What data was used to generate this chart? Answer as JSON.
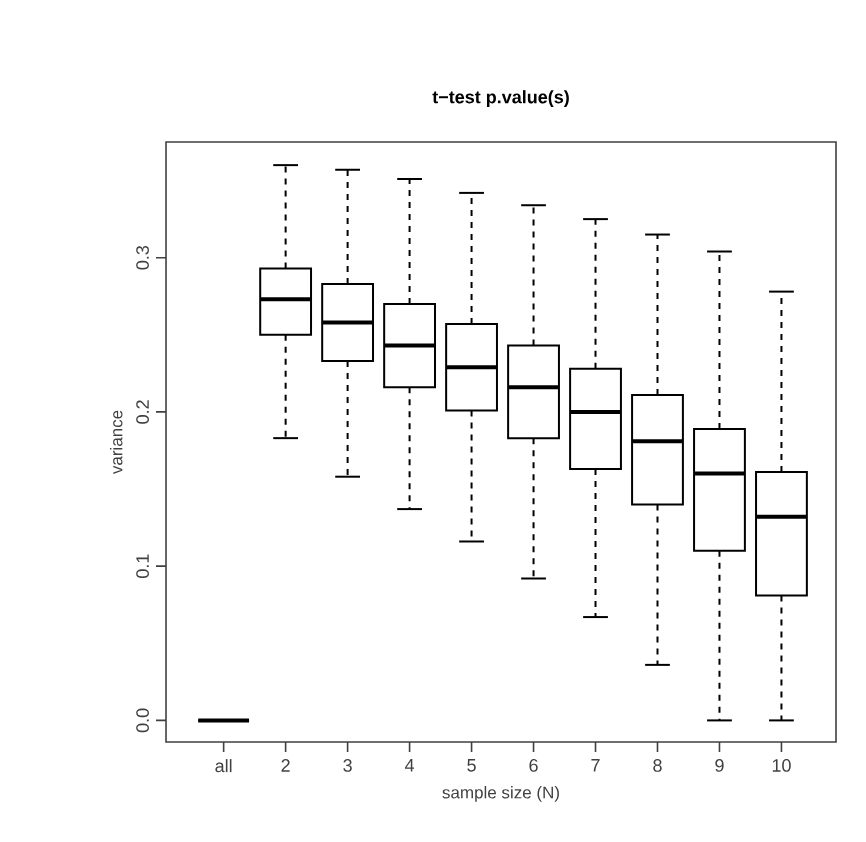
{
  "chart_data": {
    "type": "box",
    "title": "t−test p.value(s)",
    "xlabel": "sample size (N)",
    "ylabel": "variance",
    "categories": [
      "all",
      "2",
      "3",
      "4",
      "5",
      "6",
      "7",
      "8",
      "9",
      "10"
    ],
    "boxes": [
      {
        "low": 0,
        "q1": 0,
        "median": 0,
        "q3": 0,
        "high": 0
      },
      {
        "low": 0.183,
        "q1": 0.25,
        "median": 0.273,
        "q3": 0.293,
        "high": 0.36
      },
      {
        "low": 0.158,
        "q1": 0.233,
        "median": 0.258,
        "q3": 0.283,
        "high": 0.357
      },
      {
        "low": 0.137,
        "q1": 0.216,
        "median": 0.243,
        "q3": 0.27,
        "high": 0.351
      },
      {
        "low": 0.116,
        "q1": 0.201,
        "median": 0.229,
        "q3": 0.257,
        "high": 0.342
      },
      {
        "low": 0.092,
        "q1": 0.183,
        "median": 0.216,
        "q3": 0.243,
        "high": 0.334
      },
      {
        "low": 0.067,
        "q1": 0.163,
        "median": 0.2,
        "q3": 0.228,
        "high": 0.325
      },
      {
        "low": 0.036,
        "q1": 0.14,
        "median": 0.181,
        "q3": 0.211,
        "high": 0.315
      },
      {
        "low": 0.0,
        "q1": 0.11,
        "median": 0.16,
        "q3": 0.189,
        "high": 0.304
      },
      {
        "low": 0.0,
        "q1": 0.081,
        "median": 0.132,
        "q3": 0.161,
        "high": 0.278
      }
    ],
    "color": "#000000",
    "ylim": [
      -0.014,
      0.375
    ],
    "yticks": [
      {
        "value": 0,
        "label": "0.0"
      },
      0.1,
      0.2,
      0.3
    ]
  }
}
